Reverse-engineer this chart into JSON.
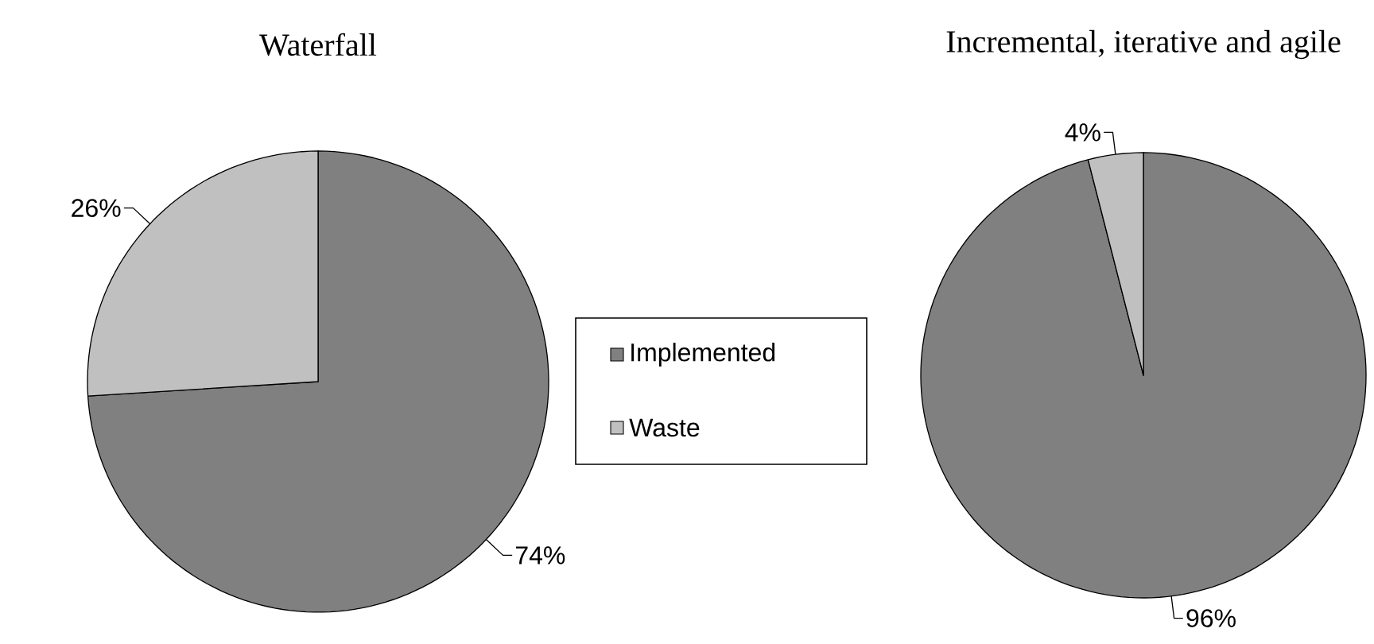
{
  "chart_data": [
    {
      "type": "pie",
      "title": "Waterfall",
      "categories": [
        "Implemented",
        "Waste"
      ],
      "values": [
        74,
        26
      ],
      "colors": [
        "#808080",
        "#c0c0c0"
      ],
      "value_labels": [
        "74%",
        "26%"
      ],
      "legend": "right"
    },
    {
      "type": "pie",
      "title": "Incremental, iterative and agile",
      "categories": [
        null,
        null
      ],
      "values": [
        96,
        4
      ],
      "colors": [
        "#808080",
        "#c0c0c0"
      ],
      "value_labels": [
        "96%",
        "4%"
      ]
    }
  ]
}
